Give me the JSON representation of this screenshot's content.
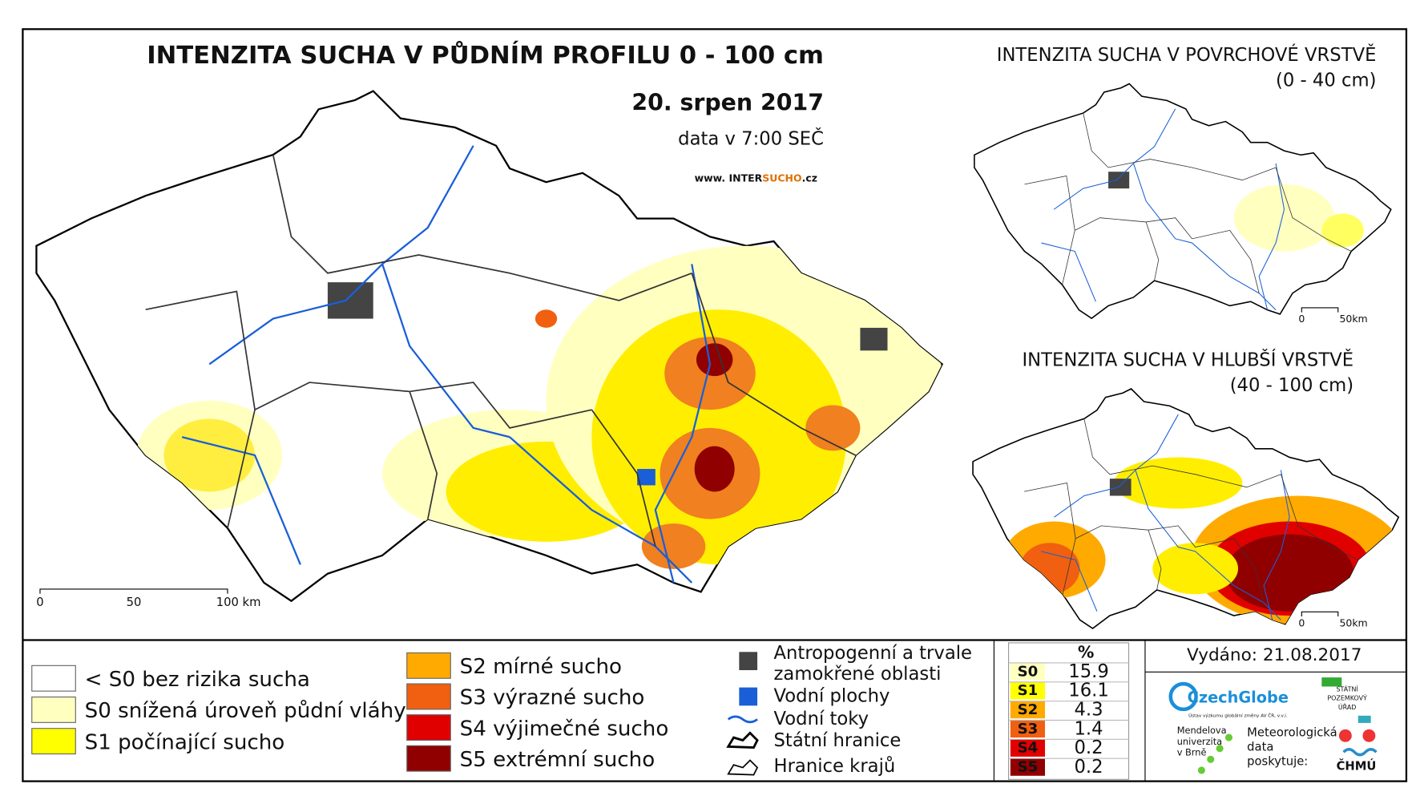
{
  "main_map": {
    "title": "INTENZITA SUCHA V PŮDNÍM PROFILU 0 - 100 cm",
    "date": "20. srpen 2017",
    "time": "data v 7:00 SEČ",
    "website": [
      "www. INTER",
      "SUCHO",
      ".cz"
    ],
    "scale": [
      "0",
      "50",
      "100 km"
    ]
  },
  "surface_map": {
    "title": "INTENZITA SUCHA V POVRCHOVÉ VRSTVĚ",
    "depth": "(0 - 40 cm)",
    "scale": [
      "0",
      "50km"
    ]
  },
  "deep_map": {
    "title": "INTENZITA SUCHA V HLUBŠÍ VRSTVĚ",
    "depth": "(40 - 100 cm)",
    "scale": [
      "0",
      "50km"
    ]
  },
  "legend": {
    "drought_classes": [
      {
        "label": "< S0 bez rizika sucha",
        "color": "#ffffff"
      },
      {
        "label": "S0 snížená úroveň půdní vláhy",
        "color": "#ffffc0"
      },
      {
        "label": "S1 počínající sucho",
        "color": "#ffff00"
      },
      {
        "label": "S2 mírné sucho",
        "color": "#ffaa00"
      },
      {
        "label": "S3 výrazné sucho",
        "color": "#f06010"
      },
      {
        "label": "S4 výjimečné sucho",
        "color": "#e00000"
      },
      {
        "label": "S5 extrémní sucho",
        "color": "#900000"
      }
    ],
    "other_items": [
      [
        "Antropogenní a trvale",
        "zamokřené oblasti"
      ],
      [
        "Vodní plochy"
      ],
      [
        "Vodní toky"
      ],
      [
        "Státní hranice"
      ],
      [
        "Hranice krajů"
      ]
    ]
  },
  "table": {
    "header": "%",
    "rows": [
      [
        "S0",
        15.9
      ],
      [
        "S1",
        16.1
      ],
      [
        "S2",
        4.3
      ],
      [
        "S3",
        1.4
      ],
      [
        "S4",
        0.2
      ],
      [
        "S5",
        0.2
      ]
    ]
  },
  "footer": {
    "issued": "Vydáno: 21.08.2017",
    "czechglobe": "CzechGlobe",
    "czechglobe_sub": "Ústav výzkumu globální změny AV ČR, v.v.i.",
    "spu": [
      "STÁTNÍ",
      "POZEMKOVÝ",
      "ÚŘAD"
    ],
    "mendel": [
      "Mendelova",
      "univerzita",
      "v Brně"
    ],
    "chmu_note": [
      "Meteorologická",
      "data",
      "poskytuje:"
    ],
    "chmu": "ČHMÚ"
  }
}
